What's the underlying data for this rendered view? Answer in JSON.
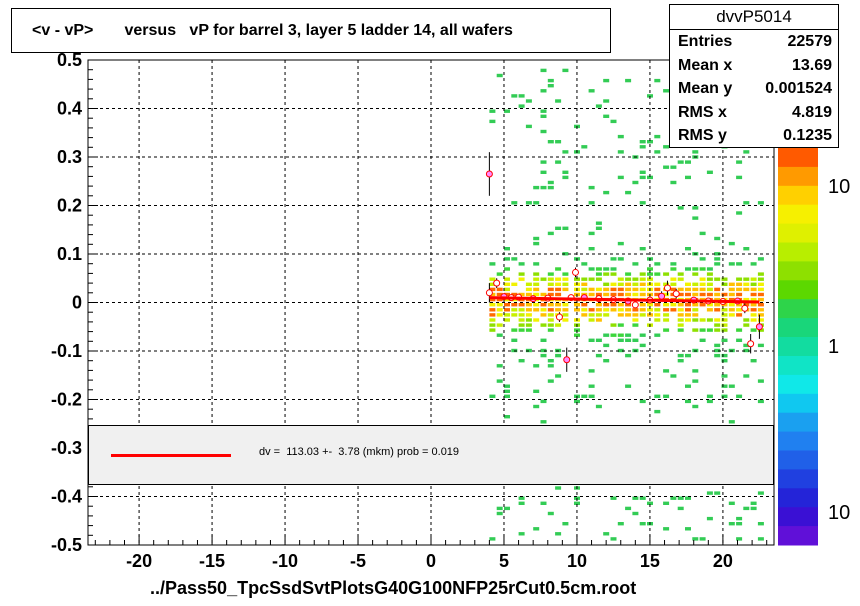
{
  "title": "<v - vP>       versus   vP for barrel 3, layer 5 ladder 14, all wafers",
  "stats": {
    "name": "dvvP5014",
    "rows": [
      {
        "key": "Entries",
        "value": "22579"
      },
      {
        "key": "Mean x",
        "value": "13.69"
      },
      {
        "key": "Mean y",
        "value": "0.001524"
      },
      {
        "key": "RMS x",
        "value": "4.819"
      },
      {
        "key": "RMS y",
        "value": "0.1235"
      }
    ]
  },
  "x_title": "../Pass50_TpcSsdSvtPlotsG40G100NFP25rCut0.5cm.root",
  "legend": {
    "text": "dv =  113.03 +-  3.78 (mkm) prob = 0.019",
    "line_color": "#ff0000"
  },
  "colors": {
    "fit_line": "#ff0000",
    "frame": "#000000",
    "grid": "#000000"
  },
  "chart_data": {
    "type": "heatmap",
    "xlim": [
      -23.5,
      23.5
    ],
    "ylim": [
      -0.5,
      0.5
    ],
    "x_ticks": [
      -20,
      -15,
      -10,
      -5,
      0,
      5,
      10,
      15,
      20
    ],
    "y_ticks": [
      -0.5,
      -0.4,
      -0.3,
      -0.2,
      -0.1,
      0,
      0.1,
      0.2,
      0.3,
      0.4,
      0.5
    ],
    "y_tick_labels": [
      "-0.5",
      "-0.4",
      "-0.3",
      "-0.2",
      "-0.1",
      "0",
      "0.1",
      "0.2",
      "0.3",
      "0.4",
      "0.5"
    ],
    "grid": true,
    "palette_labels": [
      "10",
      "1",
      "10"
    ],
    "fit": {
      "x": [
        4,
        22.5
      ],
      "y": [
        0.01,
        0.001
      ]
    },
    "profile_points": [
      {
        "x": 4.0,
        "y": 0.265,
        "err": 0.045
      },
      {
        "x": 4.0,
        "y": 0.02,
        "err": 0.02
      },
      {
        "x": 4.5,
        "y": 0.04,
        "err": 0.01
      },
      {
        "x": 5.0,
        "y": 0.012,
        "err": 0.005
      },
      {
        "x": 5.5,
        "y": 0.01,
        "err": 0.005
      },
      {
        "x": 6.0,
        "y": 0.011,
        "err": 0.005
      },
      {
        "x": 7.0,
        "y": 0.008,
        "err": 0.005
      },
      {
        "x": 8.0,
        "y": 0.009,
        "err": 0.005
      },
      {
        "x": 8.8,
        "y": -0.03,
        "err": 0.01
      },
      {
        "x": 9.3,
        "y": -0.118,
        "err": 0.025
      },
      {
        "x": 9.6,
        "y": 0.01,
        "err": 0.005
      },
      {
        "x": 9.9,
        "y": 0.062,
        "err": 0.01
      },
      {
        "x": 10.5,
        "y": 0.01,
        "err": 0.005
      },
      {
        "x": 11.5,
        "y": 0.008,
        "err": 0.005
      },
      {
        "x": 12.5,
        "y": 0.006,
        "err": 0.005
      },
      {
        "x": 13.5,
        "y": 0.003,
        "err": 0.005
      },
      {
        "x": 14.0,
        "y": -0.005,
        "err": 0.005
      },
      {
        "x": 15.0,
        "y": 0.005,
        "err": 0.005
      },
      {
        "x": 15.8,
        "y": 0.013,
        "err": 0.01
      },
      {
        "x": 16.2,
        "y": 0.03,
        "err": 0.015
      },
      {
        "x": 16.8,
        "y": 0.018,
        "err": 0.01
      },
      {
        "x": 18.0,
        "y": 0.005,
        "err": 0.005
      },
      {
        "x": 19.0,
        "y": 0.003,
        "err": 0.005
      },
      {
        "x": 20.0,
        "y": 0.002,
        "err": 0.005
      },
      {
        "x": 21.0,
        "y": 0.003,
        "err": 0.005
      },
      {
        "x": 21.5,
        "y": -0.012,
        "err": 0.01
      },
      {
        "x": 21.9,
        "y": -0.085,
        "err": 0.02
      },
      {
        "x": 22.5,
        "y": -0.05,
        "err": 0.025
      }
    ]
  }
}
